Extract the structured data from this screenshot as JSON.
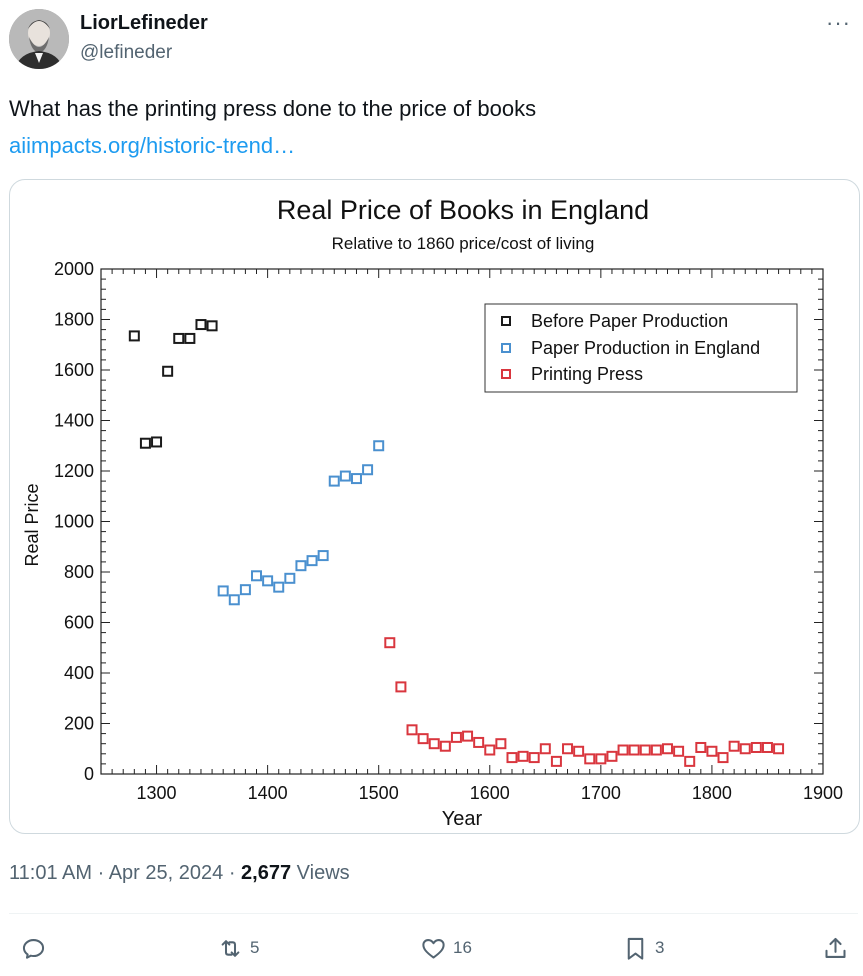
{
  "author": {
    "name": "LiorLefineder",
    "handle": "@lefineder"
  },
  "tweet": {
    "text": "What has the printing press done to the price of books",
    "link": "aiimpacts.org/historic-trend…"
  },
  "meta": {
    "time": "11:01 AM",
    "date": "Apr 25, 2024",
    "views_count": "2,677",
    "views_label": "Views",
    "sep": "·"
  },
  "actions": {
    "replies": "",
    "reposts": "5",
    "likes": "16",
    "bookmarks": "3"
  },
  "more_label": "···",
  "chart_data": {
    "type": "scatter",
    "title": "Real Price of Books in England",
    "subtitle": "Relative to 1860 price/cost of living",
    "xlabel": "Year",
    "ylabel": "Real Price",
    "xlim": [
      1250,
      1900
    ],
    "ylim": [
      0,
      2000
    ],
    "xticks": [
      1300,
      1400,
      1500,
      1600,
      1700,
      1800,
      1900
    ],
    "yticks": [
      0,
      200,
      400,
      600,
      800,
      1000,
      1200,
      1400,
      1600,
      1800,
      2000
    ],
    "legend_position": "top-right",
    "series": [
      {
        "name": "Before Paper Production",
        "color": "#1a1a1a",
        "x": [
          1280,
          1290,
          1300,
          1310,
          1320,
          1330,
          1340,
          1350
        ],
        "y": [
          1735,
          1310,
          1315,
          1595,
          1725,
          1725,
          1780,
          1775
        ]
      },
      {
        "name": "Paper Production in England",
        "color": "#4a90cf",
        "x": [
          1360,
          1370,
          1380,
          1390,
          1400,
          1410,
          1420,
          1430,
          1440,
          1450,
          1460,
          1470,
          1480,
          1490,
          1500
        ],
        "y": [
          725,
          690,
          730,
          785,
          765,
          740,
          775,
          825,
          845,
          865,
          1160,
          1180,
          1170,
          1205,
          1300
        ]
      },
      {
        "name": "Printing Press",
        "color": "#d9363e",
        "x": [
          1510,
          1520,
          1530,
          1540,
          1550,
          1560,
          1570,
          1580,
          1590,
          1600,
          1610,
          1620,
          1630,
          1640,
          1650,
          1660,
          1670,
          1680,
          1690,
          1700,
          1710,
          1720,
          1730,
          1740,
          1750,
          1760,
          1770,
          1780,
          1790,
          1800,
          1810,
          1820,
          1830,
          1840,
          1850,
          1860
        ],
        "y": [
          520,
          345,
          175,
          140,
          120,
          110,
          145,
          150,
          125,
          95,
          120,
          65,
          70,
          65,
          100,
          50,
          100,
          90,
          60,
          60,
          70,
          95,
          95,
          95,
          95,
          100,
          90,
          50,
          105,
          90,
          65,
          110,
          100,
          105,
          105,
          100
        ]
      }
    ]
  }
}
